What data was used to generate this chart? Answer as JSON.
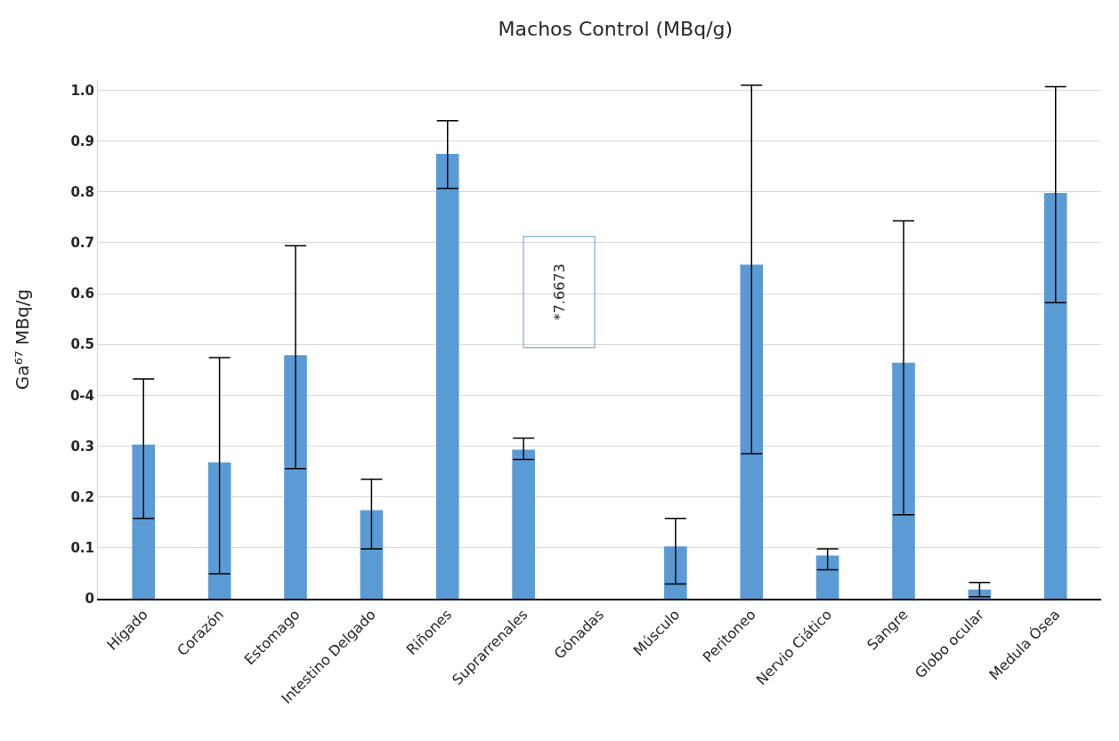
{
  "chart_data": {
    "type": "bar",
    "title": "Machos Control (MBq/g)",
    "ylabel": "Ga⁶⁷ MBq/g",
    "categories": [
      "Hígado",
      "Corazón",
      "Estomago",
      "Intestino Delgado",
      "Riñones",
      "Suprarrenales",
      "Gónadas",
      "Músculo",
      "Peritoneo",
      "Nervio Ciático",
      "Sangre",
      "Globo ocular",
      "Medula Ósea"
    ],
    "values": [
      0.303,
      0.268,
      0.479,
      0.174,
      0.875,
      0.293,
      null,
      0.103,
      0.657,
      0.085,
      0.464,
      0.018,
      0.798
    ],
    "errors": [
      [
        0.158,
        0.432
      ],
      [
        0.049,
        0.474
      ],
      [
        0.256,
        0.694
      ],
      [
        0.098,
        0.235
      ],
      [
        0.807,
        0.94
      ],
      [
        0.274,
        0.316
      ],
      null,
      [
        0.029,
        0.158
      ],
      [
        0.285,
        1.01
      ],
      [
        0.057,
        0.098
      ],
      [
        0.165,
        0.743
      ],
      [
        0.004,
        0.032
      ],
      [
        0.582,
        1.007
      ]
    ],
    "color": "#5b9bd5",
    "ylim": [
      0,
      1.02
    ],
    "yticks": [
      0,
      0.1,
      0.2,
      0.3,
      {
        "value": 0.4,
        "label": "0-4"
      },
      0.5,
      0.6,
      0.7,
      0.8,
      0.9,
      {
        "value": 1,
        "label": "1.0"
      }
    ],
    "grid": "y",
    "legend": false,
    "annotations": [
      "*7.6673"
    ]
  }
}
